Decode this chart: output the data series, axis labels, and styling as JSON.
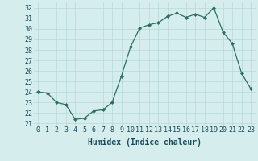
{
  "x": [
    0,
    1,
    2,
    3,
    4,
    5,
    6,
    7,
    8,
    9,
    10,
    11,
    12,
    13,
    14,
    15,
    16,
    17,
    18,
    19,
    20,
    21,
    22,
    23
  ],
  "y": [
    24.0,
    23.9,
    23.0,
    22.8,
    21.4,
    21.5,
    22.2,
    22.3,
    23.0,
    25.5,
    28.3,
    30.1,
    30.4,
    30.6,
    31.2,
    31.5,
    31.1,
    31.4,
    31.1,
    32.0,
    29.7,
    28.6,
    25.8,
    24.3
  ],
  "line_color": "#2e6e5e",
  "marker": "D",
  "marker_size": 2,
  "bg_color": "#d5eeed",
  "grid_color": "#b8d8d8",
  "xlabel": "Humidex (Indice chaleur)",
  "ylabel_ticks": [
    21,
    22,
    23,
    24,
    25,
    26,
    27,
    28,
    29,
    30,
    31,
    32
  ],
  "ylim": [
    20.8,
    32.6
  ],
  "xlim": [
    -0.5,
    23.5
  ],
  "xlabel_fontsize": 7,
  "tick_fontsize": 6,
  "label_color": "#1a4a5a",
  "linewidth": 0.9
}
